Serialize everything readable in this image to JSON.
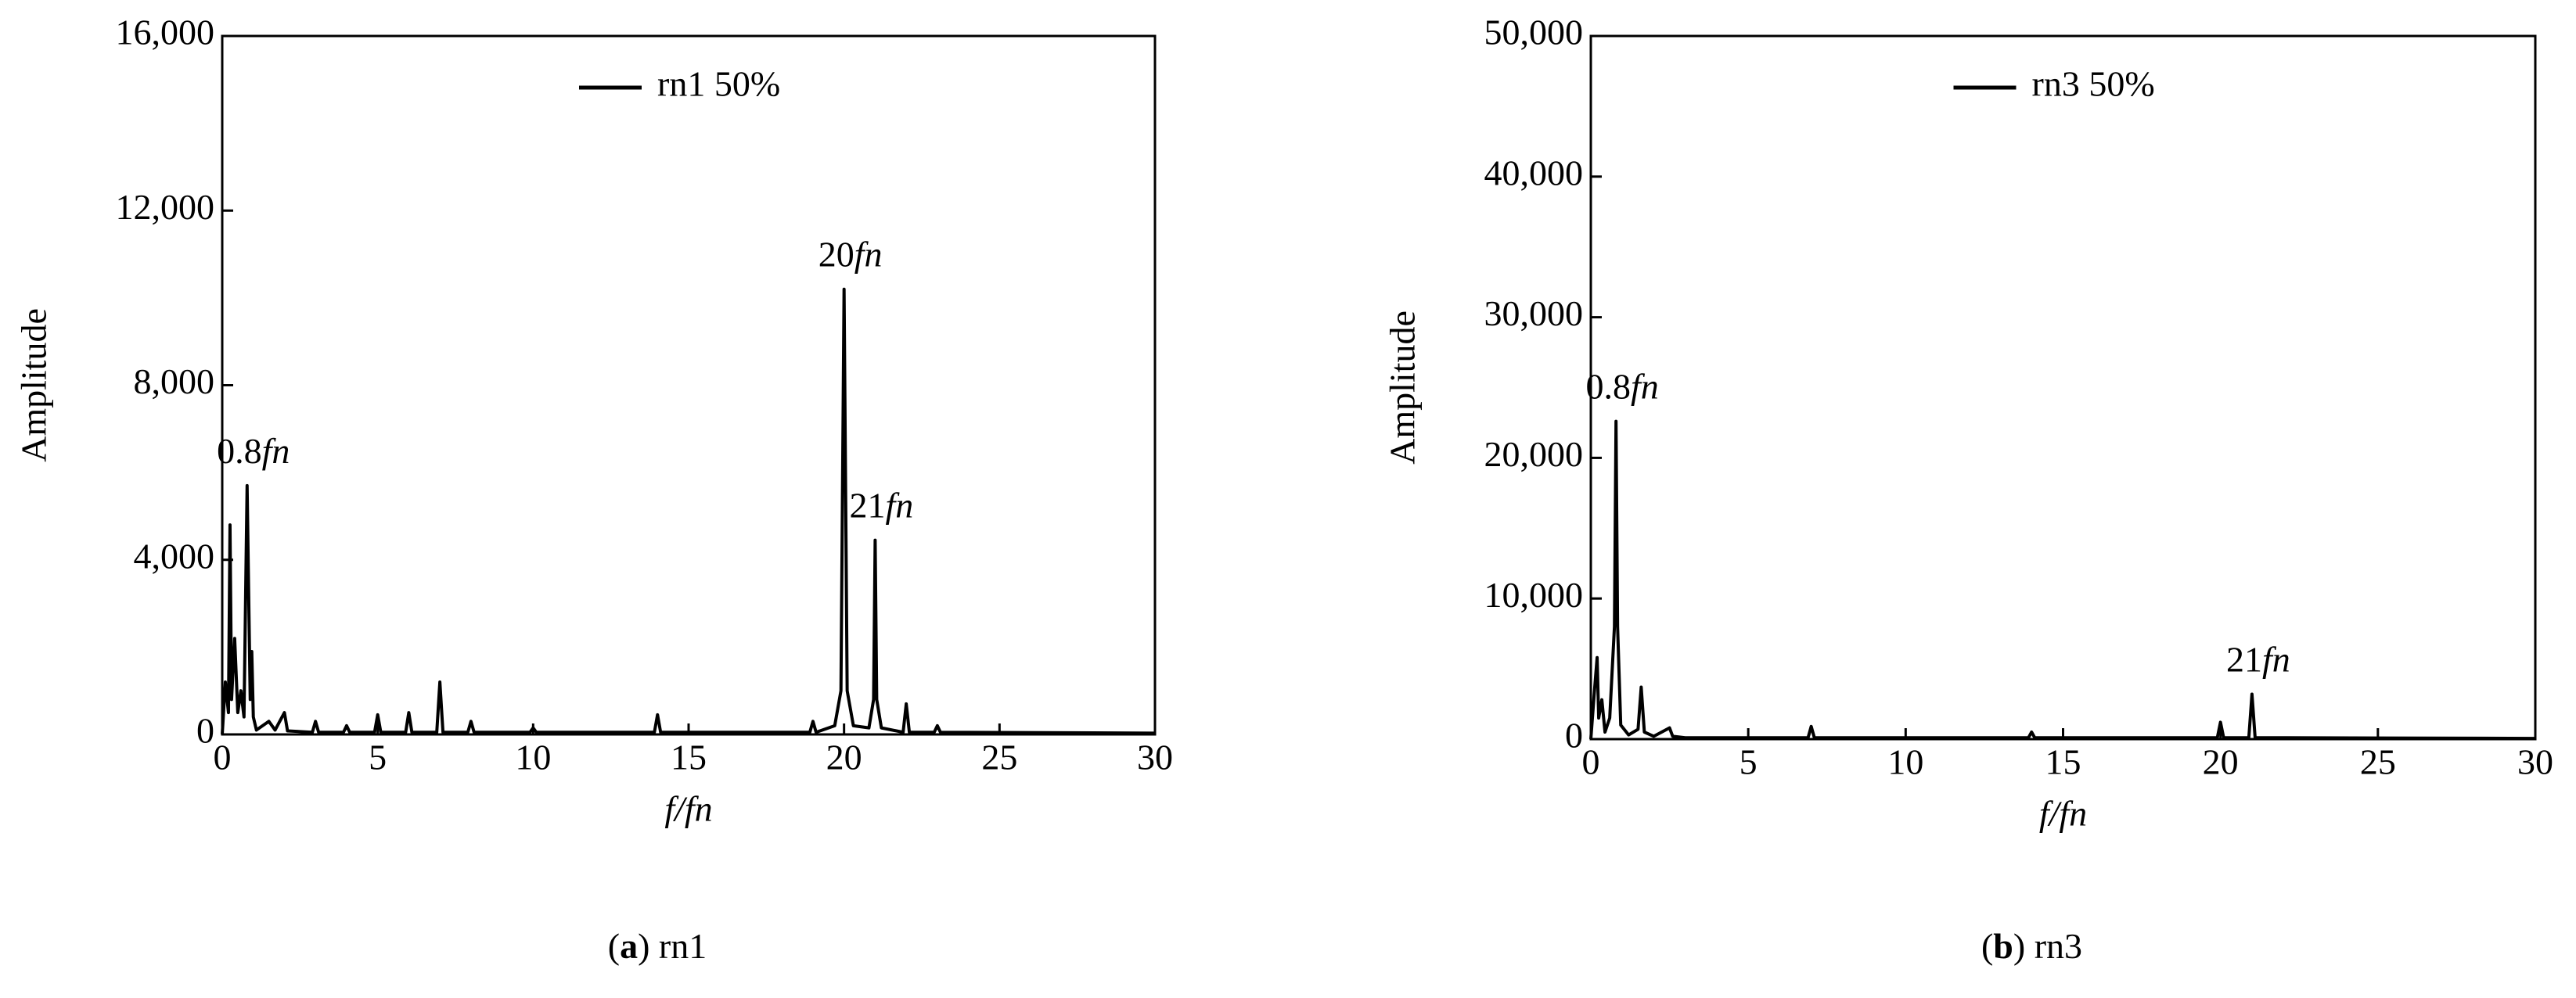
{
  "chart_data": [
    {
      "type": "line",
      "caption": "(a) rn1",
      "xlabel": "f/fn",
      "ylabel": "Amplitude",
      "legend": "top-center",
      "xlim": [
        0,
        30
      ],
      "xticks": [
        0,
        5,
        10,
        15,
        20,
        25,
        30
      ],
      "ylim": [
        0,
        16000
      ],
      "yticks": [
        0,
        {
          "value": 4000,
          "label": "4,000"
        },
        {
          "value": 8000,
          "label": "8,000"
        },
        {
          "value": 12000,
          "label": "12,000"
        },
        {
          "value": 16000,
          "label": "16,000"
        }
      ],
      "annotations": [
        {
          "text": "0.8fn",
          "x": 0.8,
          "y": 5700
        },
        {
          "text": "20fn",
          "x": 20,
          "y": 10200
        },
        {
          "text": "21fn",
          "x": 21,
          "y": 4450
        }
      ],
      "x": [
        0,
        0.1,
        0.2,
        0.25,
        0.3,
        0.4,
        0.5,
        0.6,
        0.7,
        0.8,
        0.9,
        0.95,
        1.0,
        1.1,
        1.5,
        1.7,
        2,
        2.1,
        2.9,
        3,
        3.1,
        3.9,
        4,
        4.1,
        4.9,
        5,
        5.1,
        5.9,
        6,
        6.1,
        6.9,
        7,
        7.1,
        7.9,
        8,
        8.1,
        9.9,
        10,
        10.1,
        13.9,
        14,
        14.1,
        18.9,
        19,
        19.1,
        19.7,
        19.9,
        20,
        20.1,
        20.3,
        20.8,
        20.95,
        21,
        21.05,
        21.2,
        21.9,
        22,
        22.1,
        22.9,
        23,
        23.1,
        30
      ],
      "series": [
        {
          "name": "rn1 50%",
          "color": "#000000",
          "values": [
            0,
            1200,
            500,
            4800,
            800,
            2200,
            500,
            1000,
            400,
            5700,
            800,
            1900,
            400,
            100,
            300,
            100,
            500,
            80,
            50,
            300,
            50,
            50,
            200,
            50,
            50,
            450,
            50,
            50,
            500,
            50,
            50,
            1200,
            50,
            50,
            300,
            50,
            50,
            150,
            50,
            50,
            450,
            50,
            50,
            300,
            50,
            200,
            1000,
            10200,
            1000,
            200,
            150,
            800,
            4450,
            800,
            150,
            50,
            700,
            50,
            50,
            200,
            50,
            30
          ]
        }
      ]
    },
    {
      "type": "line",
      "caption": "(b) rn3",
      "xlabel": "f/fn",
      "ylabel": "Amplitude",
      "legend": "top-center",
      "xlim": [
        0,
        30
      ],
      "xticks": [
        0,
        5,
        10,
        15,
        20,
        25,
        30
      ],
      "ylim": [
        0,
        50000
      ],
      "yticks": [
        0,
        {
          "value": 10000,
          "label": "10,000"
        },
        {
          "value": 20000,
          "label": "20,000"
        },
        {
          "value": 30000,
          "label": "30,000"
        },
        {
          "value": 40000,
          "label": "40,000"
        },
        {
          "value": 50000,
          "label": "50,000"
        }
      ],
      "annotations": [
        {
          "text": "0.8fn",
          "x": 0.8,
          "y": 22600
        },
        {
          "text": "21fn",
          "x": 21,
          "y": 3200
        }
      ],
      "x": [
        0,
        0.1,
        0.2,
        0.25,
        0.35,
        0.45,
        0.6,
        0.75,
        0.8,
        0.85,
        0.95,
        1.2,
        1.5,
        1.6,
        1.7,
        2.0,
        2.5,
        2.6,
        3,
        6.9,
        7,
        7.1,
        13.9,
        14,
        14.1,
        19.9,
        20,
        20.1,
        20.9,
        21,
        21.1,
        22,
        30
      ],
      "series": [
        {
          "name": "rn3 50%",
          "color": "#000000",
          "values": [
            0,
            3000,
            5800,
            1500,
            2800,
            500,
            1500,
            8000,
            22600,
            8000,
            1000,
            300,
            700,
            3700,
            500,
            200,
            800,
            200,
            100,
            100,
            900,
            100,
            100,
            500,
            100,
            100,
            1200,
            100,
            100,
            3200,
            100,
            100,
            50
          ]
        }
      ]
    }
  ]
}
